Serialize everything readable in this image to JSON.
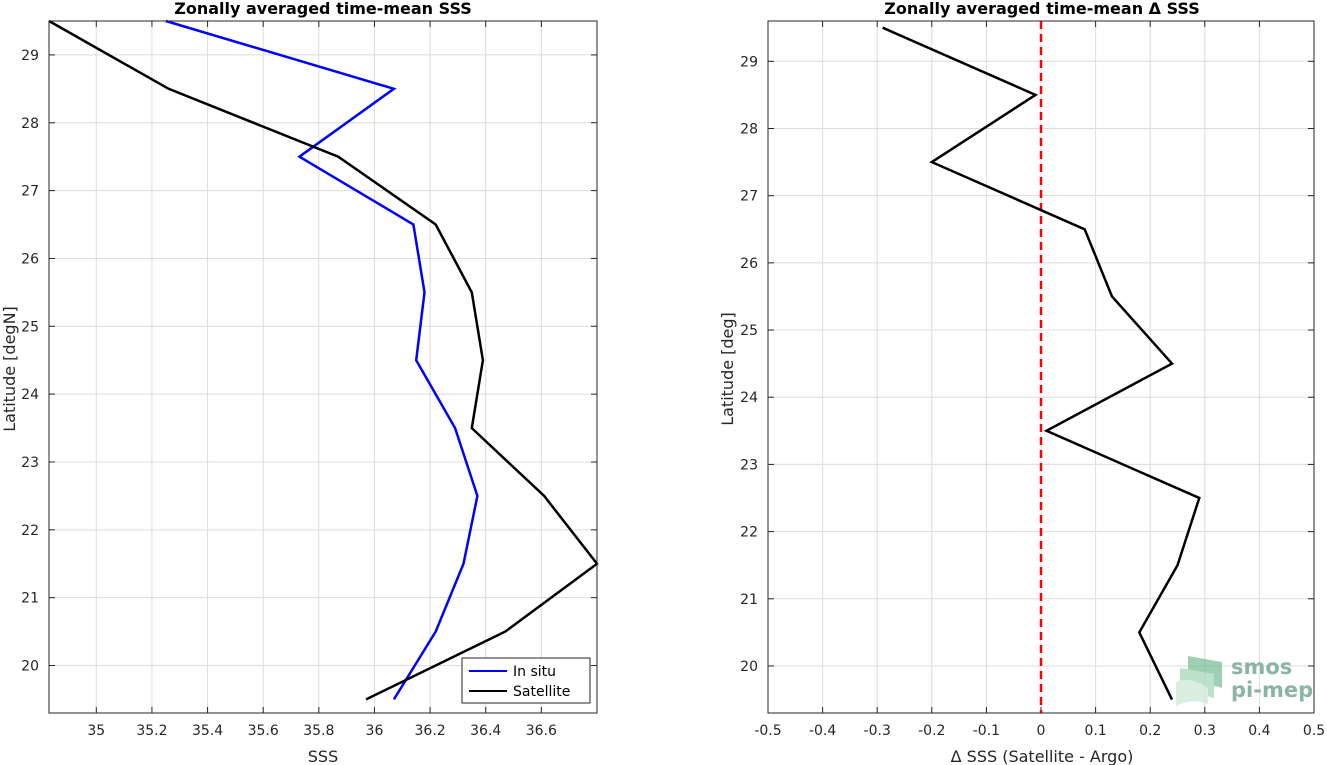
{
  "chart_data": [
    {
      "type": "line",
      "title": "Zonally averaged time-mean SSS",
      "xlabel": "SSS",
      "ylabel": "Latitude [degN]",
      "xlim": [
        34.83,
        36.8
      ],
      "ylim": [
        19.3,
        29.5
      ],
      "xticks": [
        35,
        35.2,
        35.4,
        35.6,
        35.8,
        36,
        36.2,
        36.4,
        36.6
      ],
      "xtick_labels": [
        "35",
        "35.2",
        "35.4",
        "35.6",
        "35.8",
        "36",
        "36.2",
        "36.4",
        "36.6"
      ],
      "yticks": [
        20,
        21,
        22,
        23,
        24,
        25,
        26,
        27,
        28,
        29
      ],
      "ytick_labels": [
        "20",
        "21",
        "22",
        "23",
        "24",
        "25",
        "26",
        "27",
        "28",
        "29"
      ],
      "grid": true,
      "legend": {
        "position": "bottom-right"
      },
      "series": [
        {
          "name": "In situ",
          "color": "#0000ff",
          "x": [
            35.25,
            36.07,
            35.73,
            36.14,
            36.18,
            36.15,
            36.29,
            36.37,
            36.32,
            36.22,
            36.07
          ],
          "y": [
            29.5,
            28.5,
            27.5,
            26.5,
            25.5,
            24.5,
            23.5,
            22.5,
            21.5,
            20.5,
            19.5
          ]
        },
        {
          "name": "Satellite",
          "color": "#000000",
          "x": [
            34.83,
            35.26,
            35.87,
            36.22,
            36.35,
            36.39,
            36.35,
            36.61,
            36.8,
            36.47,
            35.97
          ],
          "y": [
            29.5,
            28.5,
            27.5,
            26.5,
            25.5,
            24.5,
            23.5,
            22.5,
            21.5,
            20.5,
            19.5
          ]
        }
      ]
    },
    {
      "type": "line",
      "title": "Zonally averaged time-mean Δ SSS",
      "xlabel": "Δ SSS (Satellite - Argo)",
      "ylabel": "Latitude [deg]",
      "xlim": [
        -0.5,
        0.5
      ],
      "ylim": [
        19.3,
        29.6
      ],
      "xticks": [
        -0.5,
        -0.4,
        -0.3,
        -0.2,
        -0.1,
        0,
        0.1,
        0.2,
        0.3,
        0.4,
        0.5
      ],
      "xtick_labels": [
        "-0.5",
        "-0.4",
        "-0.3",
        "-0.2",
        "-0.1",
        "0",
        "0.1",
        "0.2",
        "0.3",
        "0.4",
        "0.5"
      ],
      "yticks": [
        20,
        21,
        22,
        23,
        24,
        25,
        26,
        27,
        28,
        29
      ],
      "ytick_labels": [
        "20",
        "21",
        "22",
        "23",
        "24",
        "25",
        "26",
        "27",
        "28",
        "29"
      ],
      "grid": true,
      "reference_line": {
        "x": 0,
        "color": "#ff0000",
        "style": "dashed"
      },
      "series": [
        {
          "color": "#000000",
          "x": [
            -0.29,
            -0.01,
            -0.2,
            0.08,
            0.13,
            0.24,
            0.01,
            0.29,
            0.25,
            0.18,
            0.24
          ],
          "y": [
            29.5,
            28.5,
            27.5,
            26.5,
            25.5,
            24.5,
            23.5,
            22.5,
            21.5,
            20.5,
            19.5
          ]
        }
      ]
    }
  ],
  "watermark": {
    "line1": "smos",
    "line2": "pi-mep",
    "color": "#8ab5a0"
  }
}
